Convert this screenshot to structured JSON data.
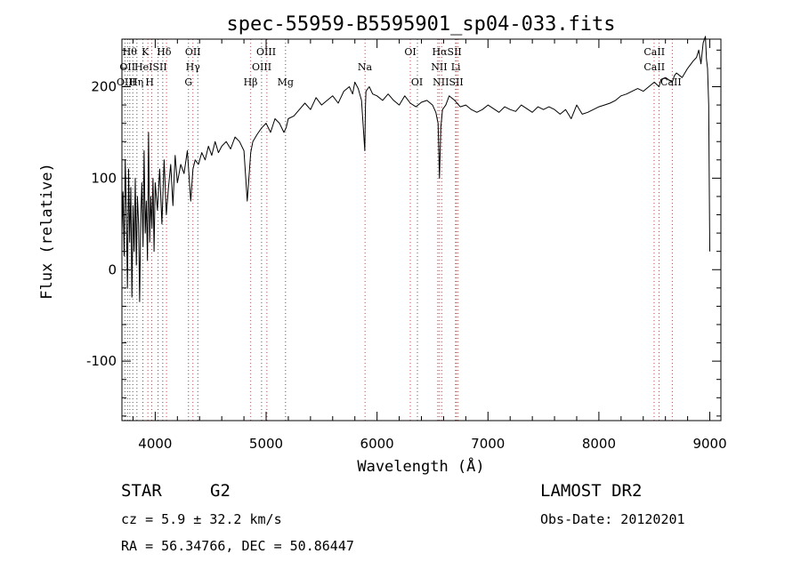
{
  "chart_data": {
    "type": "line",
    "title": "spec-55959-B5595901_sp04-033.fits",
    "xlabel": "Wavelength (Å)",
    "ylabel": "Flux (relative)",
    "xlim": [
      3700,
      9100
    ],
    "ylim": [
      -165,
      252
    ],
    "x_ticks": [
      4000,
      5000,
      6000,
      7000,
      8000,
      9000
    ],
    "y_ticks": [
      -100,
      0,
      100,
      200
    ],
    "grid": false,
    "series": [
      {
        "x": [
          3700,
          3710,
          3720,
          3730,
          3740,
          3750,
          3760,
          3770,
          3780,
          3790,
          3800,
          3810,
          3820,
          3830,
          3840,
          3850,
          3860,
          3870,
          3880,
          3890,
          3900,
          3910,
          3920,
          3930,
          3940,
          3950,
          3960,
          3970,
          3980,
          3990,
          4000,
          4020,
          4040,
          4060,
          4080,
          4100,
          4120,
          4140,
          4160,
          4180,
          4200,
          4230,
          4260,
          4290,
          4320,
          4340,
          4360,
          4390,
          4420,
          4450,
          4480,
          4510,
          4540,
          4570,
          4600,
          4640,
          4680,
          4720,
          4760,
          4800,
          4830,
          4861,
          4880,
          4920,
          4960,
          5000,
          5040,
          5080,
          5120,
          5160,
          5180,
          5200,
          5250,
          5300,
          5350,
          5400,
          5450,
          5500,
          5550,
          5600,
          5650,
          5700,
          5750,
          5780,
          5800,
          5830,
          5860,
          5890,
          5895,
          5900,
          5930,
          5960,
          6000,
          6050,
          6100,
          6150,
          6200,
          6250,
          6300,
          6350,
          6400,
          6450,
          6500,
          6530,
          6550,
          6563,
          6575,
          6590,
          6620,
          6650,
          6700,
          6750,
          6800,
          6850,
          6900,
          6950,
          7000,
          7050,
          7100,
          7150,
          7200,
          7250,
          7300,
          7350,
          7400,
          7450,
          7500,
          7550,
          7600,
          7650,
          7700,
          7750,
          7800,
          7850,
          7900,
          7950,
          8000,
          8050,
          8100,
          8150,
          8200,
          8250,
          8300,
          8350,
          8400,
          8450,
          8500,
          8542,
          8560,
          8600,
          8662,
          8680,
          8700,
          8750,
          8800,
          8850,
          8880,
          8900,
          8920,
          8940,
          8960,
          8970,
          8980,
          8990,
          9000
        ],
        "y": [
          40,
          85,
          15,
          120,
          60,
          -20,
          110,
          30,
          90,
          -30,
          70,
          20,
          100,
          5,
          80,
          50,
          -35,
          60,
          95,
          25,
          130,
          40,
          75,
          10,
          150,
          30,
          80,
          45,
          100,
          20,
          95,
          65,
          110,
          50,
          120,
          60,
          90,
          115,
          70,
          125,
          95,
          115,
          105,
          130,
          75,
          110,
          120,
          115,
          128,
          120,
          135,
          125,
          140,
          128,
          135,
          140,
          132,
          145,
          140,
          130,
          75,
          128,
          140,
          148,
          155,
          160,
          150,
          165,
          160,
          150,
          155,
          165,
          168,
          175,
          182,
          175,
          188,
          180,
          185,
          190,
          182,
          195,
          200,
          192,
          205,
          198,
          185,
          130,
          178,
          195,
          200,
          192,
          190,
          185,
          192,
          185,
          180,
          190,
          182,
          178,
          183,
          185,
          180,
          172,
          160,
          100,
          155,
          175,
          180,
          190,
          185,
          178,
          180,
          175,
          172,
          175,
          180,
          176,
          172,
          178,
          175,
          173,
          180,
          176,
          172,
          178,
          175,
          178,
          175,
          170,
          175,
          165,
          180,
          170,
          172,
          175,
          178,
          180,
          182,
          185,
          190,
          192,
          195,
          198,
          195,
          200,
          205,
          200,
          208,
          210,
          205,
          212,
          215,
          210,
          220,
          228,
          232,
          240,
          225,
          248,
          255,
          230,
          220,
          180,
          20
        ]
      }
    ],
    "lines_red": [
      3934,
      3969,
      4102,
      4340,
      4861,
      5007,
      5892,
      6300,
      6563,
      6583,
      6717,
      6731,
      8498,
      8542,
      8662
    ],
    "lines_black": [
      3727,
      3750,
      3771,
      3798,
      3835,
      3889,
      4026,
      4068,
      4300,
      4384,
      4959,
      5175,
      6364,
      6548,
      6708
    ]
  },
  "line_labels": [
    {
      "text": "Hθ",
      "wl": 3770,
      "row": 1
    },
    {
      "text": "K",
      "wl": 3910,
      "row": 1
    },
    {
      "text": "Hδ",
      "wl": 4080,
      "row": 1
    },
    {
      "text": "OII",
      "wl": 4340,
      "row": 1
    },
    {
      "text": "OIII",
      "wl": 5000,
      "row": 1
    },
    {
      "text": "OI",
      "wl": 6300,
      "row": 1
    },
    {
      "text": "HαSII",
      "wl": 6630,
      "row": 1
    },
    {
      "text": "CaII",
      "wl": 8500,
      "row": 1
    },
    {
      "text": "OII",
      "wl": 3750,
      "row": 2
    },
    {
      "text": "HeISII",
      "wl": 3960,
      "row": 2
    },
    {
      "text": "Hγ",
      "wl": 4340,
      "row": 2
    },
    {
      "text": "OIII",
      "wl": 4960,
      "row": 2
    },
    {
      "text": "Na",
      "wl": 5890,
      "row": 2
    },
    {
      "text": "NII",
      "wl": 6560,
      "row": 2
    },
    {
      "text": "Li",
      "wl": 6710,
      "row": 2
    },
    {
      "text": "CaII",
      "wl": 8500,
      "row": 2
    },
    {
      "text": "OIII",
      "wl": 3740,
      "row": 3
    },
    {
      "text": "Hη",
      "wl": 3830,
      "row": 3
    },
    {
      "text": "H",
      "wl": 3950,
      "row": 3
    },
    {
      "text": "G",
      "wl": 4300,
      "row": 3
    },
    {
      "text": "Hβ",
      "wl": 4860,
      "row": 3
    },
    {
      "text": "Mg",
      "wl": 5175,
      "row": 3
    },
    {
      "text": "OI",
      "wl": 6360,
      "row": 3
    },
    {
      "text": "NIISII",
      "wl": 6640,
      "row": 3
    },
    {
      "text": "CaII",
      "wl": 8650,
      "row": 3
    }
  ],
  "info": {
    "class_label": "STAR",
    "subclass": "G2",
    "survey": "LAMOST DR2",
    "redshift": "cz = 5.9 ± 32.2 km/s",
    "obs_date": "Obs-Date: 20120201",
    "coords": "RA =  56.34766, DEC =  50.86447"
  },
  "colors": {
    "spectrum": "#000000",
    "line_red": "#d04040",
    "line_black": "#555555"
  }
}
